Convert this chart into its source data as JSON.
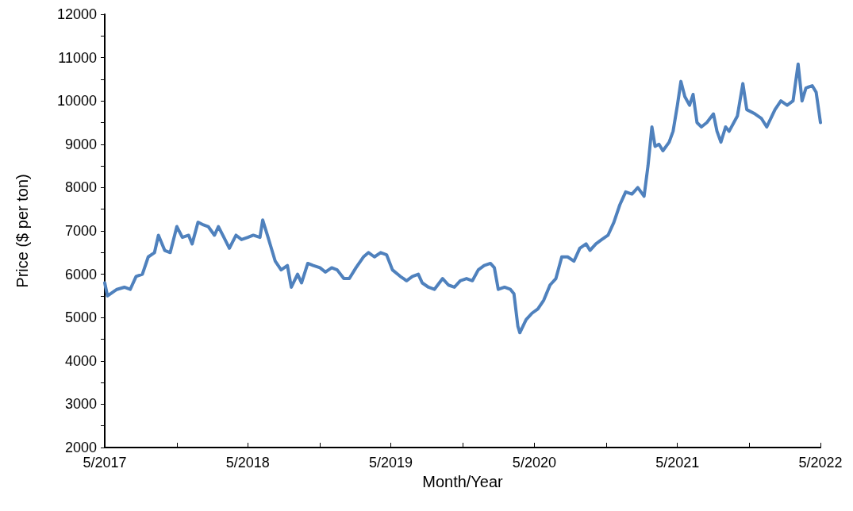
{
  "chart_data": {
    "type": "line",
    "xlabel": "Month/Year",
    "ylabel": "Price ($ per ton)",
    "xlim": [
      "2017-05-01",
      "2022-05-01"
    ],
    "xticks": [
      {
        "value": "2017-05-01",
        "label": "5/2017"
      },
      {
        "value": "2017-11-01",
        "label": null
      },
      {
        "value": "2018-05-01",
        "label": "5/2018"
      },
      {
        "value": "2018-11-01",
        "label": null
      },
      {
        "value": "2019-05-01",
        "label": "5/2019"
      },
      {
        "value": "2019-11-01",
        "label": null
      },
      {
        "value": "2020-05-01",
        "label": "5/2020"
      },
      {
        "value": "2020-11-01",
        "label": null
      },
      {
        "value": "2021-05-01",
        "label": "5/2021"
      },
      {
        "value": "2021-11-01",
        "label": null
      },
      {
        "value": "2022-05-01",
        "label": "5/2022"
      }
    ],
    "ylim": [
      2000,
      12000
    ],
    "yticks": [
      2000,
      {
        "value": 2500,
        "label": null
      },
      3000,
      {
        "value": 3500,
        "label": null
      },
      4000,
      {
        "value": 4500,
        "label": null
      },
      5000,
      {
        "value": 5500,
        "label": null
      },
      6000,
      {
        "value": 6500,
        "label": null
      },
      7000,
      {
        "value": 7500,
        "label": null
      },
      8000,
      {
        "value": 8500,
        "label": null
      },
      9000,
      {
        "value": 9500,
        "label": null
      },
      10000,
      {
        "value": 10500,
        "label": null
      },
      11000,
      {
        "value": 11500,
        "label": null
      },
      12000
    ],
    "grid": false,
    "marker": "none",
    "line_style": "solid",
    "x": [
      "2017-05-01",
      "2017-05-08",
      "2017-06-01",
      "2017-06-20",
      "2017-07-05",
      "2017-07-20",
      "2017-08-05",
      "2017-08-20",
      "2017-09-05",
      "2017-09-15",
      "2017-10-01",
      "2017-10-15",
      "2017-11-01",
      "2017-11-15",
      "2017-12-01",
      "2017-12-10",
      "2017-12-25",
      "2018-01-05",
      "2018-01-20",
      "2018-02-05",
      "2018-02-15",
      "2018-03-01",
      "2018-03-15",
      "2018-04-01",
      "2018-04-15",
      "2018-05-01",
      "2018-05-15",
      "2018-06-01",
      "2018-06-08",
      "2018-06-20",
      "2018-07-10",
      "2018-07-25",
      "2018-08-10",
      "2018-08-20",
      "2018-09-05",
      "2018-09-15",
      "2018-10-01",
      "2018-10-15",
      "2018-11-01",
      "2018-11-15",
      "2018-12-01",
      "2018-12-15",
      "2019-01-01",
      "2019-01-15",
      "2019-02-01",
      "2019-02-20",
      "2019-03-05",
      "2019-03-20",
      "2019-04-05",
      "2019-04-20",
      "2019-05-05",
      "2019-05-25",
      "2019-06-10",
      "2019-06-25",
      "2019-07-10",
      "2019-07-20",
      "2019-08-05",
      "2019-08-20",
      "2019-09-10",
      "2019-09-25",
      "2019-10-10",
      "2019-10-25",
      "2019-11-10",
      "2019-11-25",
      "2019-12-10",
      "2019-12-25",
      "2020-01-10",
      "2020-01-20",
      "2020-01-30",
      "2020-02-15",
      "2020-03-01",
      "2020-03-10",
      "2020-03-20",
      "2020-03-25",
      "2020-04-10",
      "2020-04-25",
      "2020-05-10",
      "2020-05-25",
      "2020-06-10",
      "2020-06-25",
      "2020-07-10",
      "2020-07-25",
      "2020-08-10",
      "2020-08-25",
      "2020-09-10",
      "2020-09-20",
      "2020-10-05",
      "2020-10-20",
      "2020-11-05",
      "2020-11-20",
      "2020-12-05",
      "2020-12-20",
      "2021-01-05",
      "2021-01-20",
      "2021-02-05",
      "2021-02-15",
      "2021-02-25",
      "2021-03-05",
      "2021-03-15",
      "2021-03-25",
      "2021-04-10",
      "2021-04-20",
      "2021-05-01",
      "2021-05-10",
      "2021-05-20",
      "2021-06-01",
      "2021-06-10",
      "2021-06-20",
      "2021-07-01",
      "2021-07-15",
      "2021-08-01",
      "2021-08-10",
      "2021-08-20",
      "2021-09-01",
      "2021-09-10",
      "2021-10-01",
      "2021-10-15",
      "2021-10-25",
      "2021-11-15",
      "2021-12-01",
      "2021-12-15",
      "2022-01-05",
      "2022-01-20",
      "2022-02-05",
      "2022-02-20",
      "2022-03-05",
      "2022-03-15",
      "2022-03-25",
      "2022-04-10",
      "2022-04-20",
      "2022-05-01"
    ],
    "series": [
      {
        "color": "#4f81bd",
        "values": [
          5800,
          5500,
          5650,
          5700,
          5650,
          5950,
          6000,
          6400,
          6500,
          6900,
          6550,
          6500,
          7100,
          6850,
          6900,
          6700,
          7200,
          7150,
          7100,
          6900,
          7100,
          6850,
          6600,
          6900,
          6800,
          6850,
          6900,
          6850,
          7250,
          6900,
          6300,
          6100,
          6200,
          5700,
          6000,
          5800,
          6250,
          6200,
          6150,
          6050,
          6150,
          6100,
          5900,
          5900,
          6150,
          6400,
          6500,
          6400,
          6500,
          6450,
          6100,
          5950,
          5850,
          5950,
          6000,
          5800,
          5700,
          5650,
          5900,
          5750,
          5700,
          5850,
          5900,
          5850,
          6100,
          6200,
          6250,
          6150,
          5650,
          5700,
          5650,
          5550,
          4800,
          4650,
          4950,
          5100,
          5200,
          5400,
          5750,
          5900,
          6400,
          6400,
          6300,
          6600,
          6700,
          6550,
          6700,
          6800,
          6900,
          7200,
          7600,
          7900,
          7850,
          8000,
          7800,
          8500,
          9400,
          8950,
          9000,
          8850,
          9050,
          9300,
          9900,
          10450,
          10100,
          9900,
          10150,
          9500,
          9400,
          9500,
          9700,
          9300,
          9050,
          9400,
          9300,
          9650,
          10400,
          9800,
          9700,
          9600,
          9400,
          9800,
          10000,
          9900,
          10000,
          10850,
          10000,
          10300,
          10350,
          10200,
          9500
        ]
      }
    ]
  }
}
